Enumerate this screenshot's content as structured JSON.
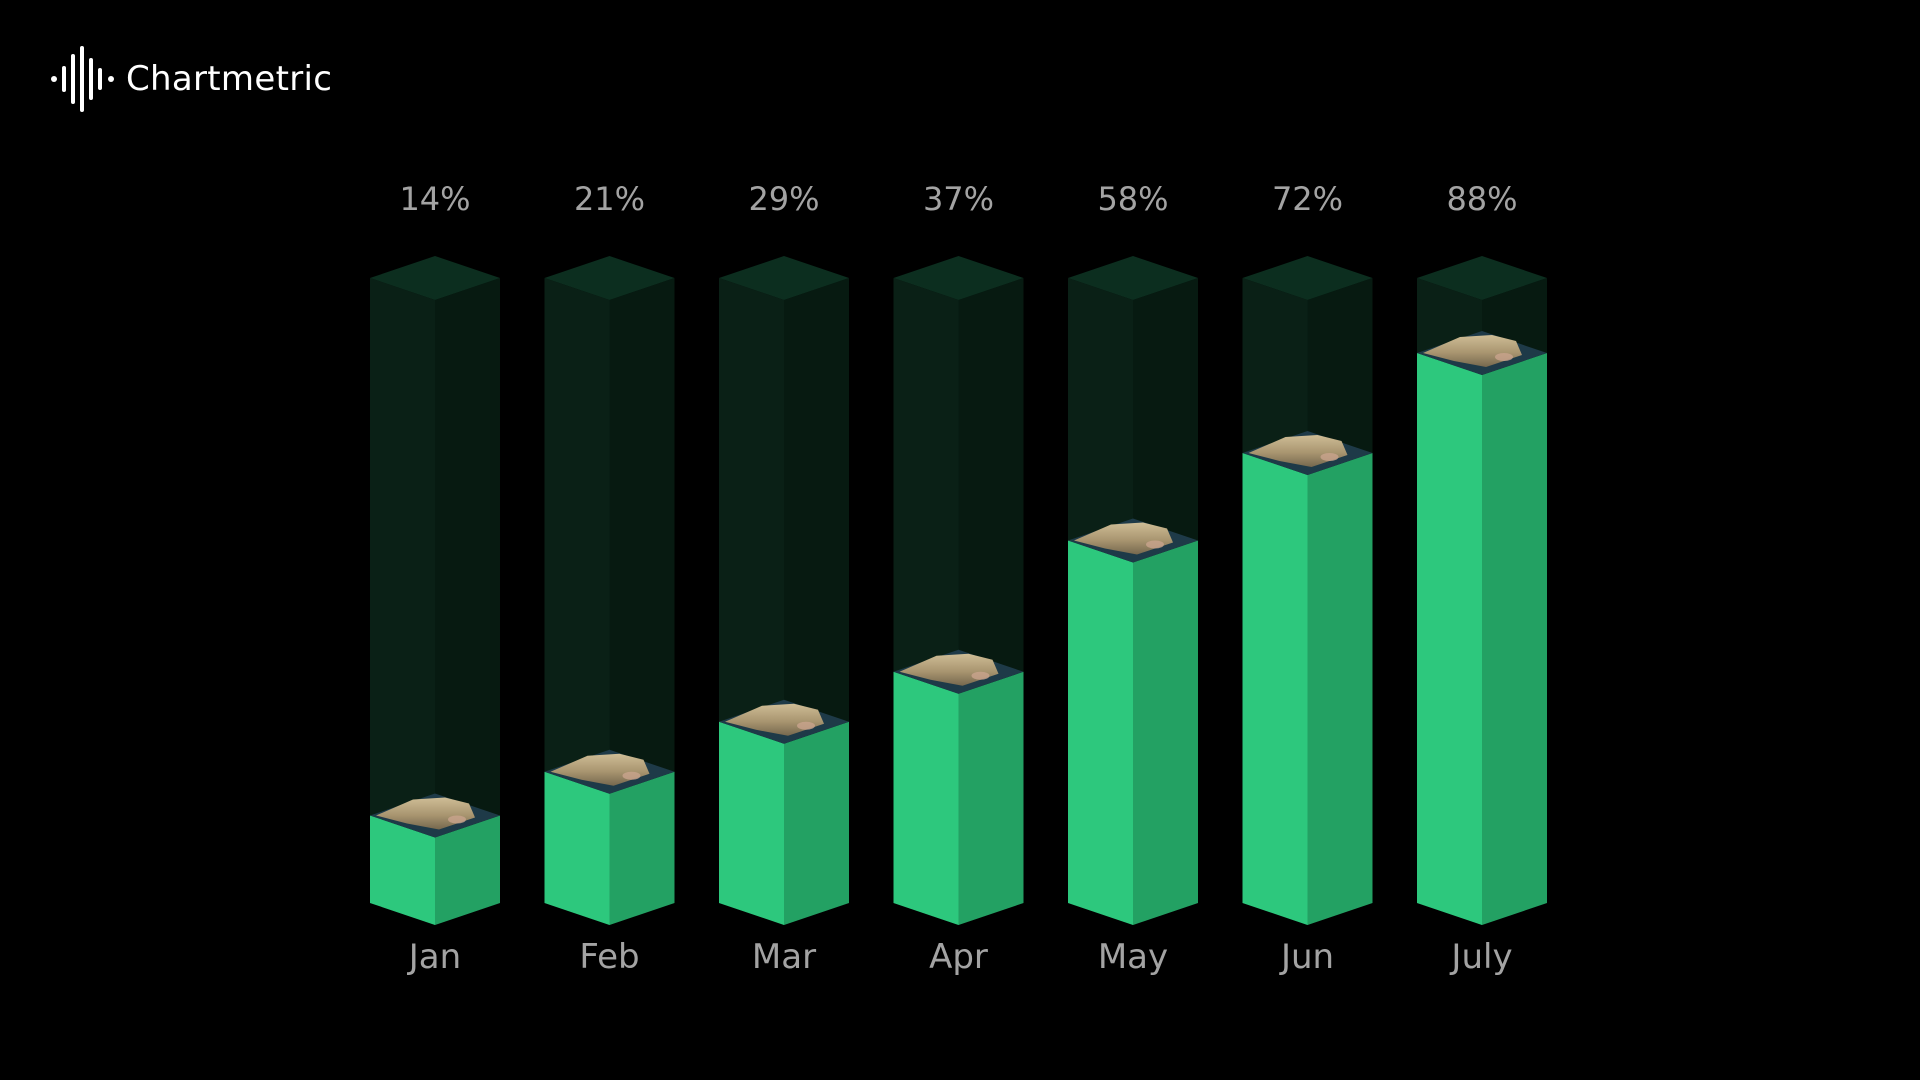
{
  "brand": {
    "name": "Chartmetric",
    "icon": "sound-wave-icon"
  },
  "chart_data": {
    "type": "bar",
    "categories": [
      "Jan",
      "Feb",
      "Mar",
      "Apr",
      "May",
      "Jun",
      "July"
    ],
    "values": [
      14,
      21,
      29,
      37,
      58,
      72,
      88
    ],
    "value_labels": [
      "14%",
      "21%",
      "29%",
      "37%",
      "58%",
      "72%",
      "88%"
    ],
    "ylim": [
      0,
      100
    ],
    "grid": false,
    "style": "3d-isometric-columns",
    "colors": {
      "fill_front": "#2dc87d",
      "fill_side": "#23a163",
      "track_front": "#0a2016",
      "track_side": "#071a11",
      "track_top": "#0c2e1f",
      "cap_base": "#1e3a48",
      "label": "#a3a3a3",
      "background": "#000000"
    }
  }
}
